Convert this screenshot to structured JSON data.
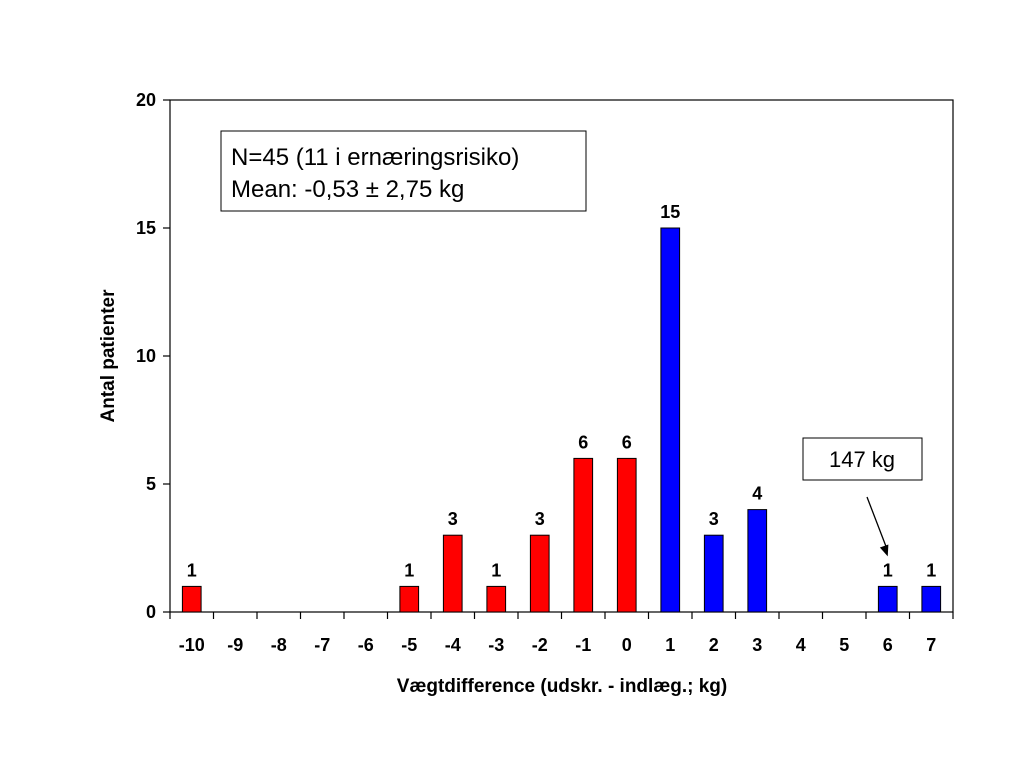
{
  "chart_data": {
    "type": "bar",
    "title": "",
    "xlabel": "Vægtdifference (udskr. - indlæg.; kg)",
    "ylabel": "Antal patienter",
    "ylim": [
      0,
      20
    ],
    "yticks": [
      0,
      5,
      10,
      15,
      20
    ],
    "grid": false,
    "categories": [
      "-10",
      "-9",
      "-8",
      "-7",
      "-6",
      "-5",
      "-4",
      "-3",
      "-2",
      "-1",
      "0",
      "1",
      "2",
      "3",
      "4",
      "5",
      "6",
      "7"
    ],
    "values": [
      1,
      0,
      0,
      0,
      0,
      1,
      3,
      1,
      3,
      6,
      6,
      15,
      3,
      4,
      0,
      0,
      1,
      1
    ],
    "colors": [
      "#ff0000",
      "#ff0000",
      "#ff0000",
      "#ff0000",
      "#ff0000",
      "#ff0000",
      "#ff0000",
      "#ff0000",
      "#ff0000",
      "#ff0000",
      "#ff0000",
      "#0000ff",
      "#0000ff",
      "#0000ff",
      "#0000ff",
      "#0000ff",
      "#0000ff",
      "#0000ff"
    ],
    "color_negative_and_zero": "#ff0000",
    "color_positive": "#0000ff",
    "annotation_box": {
      "line1": "N=45 (11 i ernæringsrisiko)",
      "line2": "Mean: -0,53 ± 2,75 kg"
    },
    "callout": {
      "text": "147 kg",
      "points_to_category": "6"
    }
  }
}
